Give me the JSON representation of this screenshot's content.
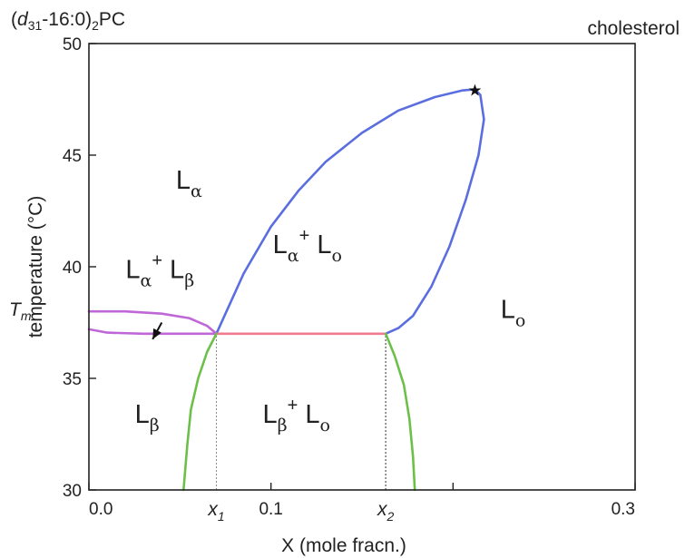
{
  "chart_data": {
    "type": "line",
    "title": "(d31-16:0)2PC",
    "title_parts": {
      "prefix": "(",
      "italic": "d",
      "sub": "31",
      "middle": "-16:0)",
      "sub2": "2",
      "suffix": "PC"
    },
    "right_label": "cholesterol",
    "xlabel": "X (mole fracn.)",
    "ylabel": "temperature (°C)",
    "xlim": [
      0.0,
      0.3
    ],
    "ylim": [
      30,
      50
    ],
    "xticks": [
      0.0,
      0.1,
      0.2,
      0.3
    ],
    "xtick_labels": [
      "0.0",
      "0.1",
      "",
      "0.3"
    ],
    "yticks": [
      30,
      35,
      40,
      45,
      50
    ],
    "ytick_labels": [
      "30",
      "35",
      "40",
      "45",
      "50"
    ],
    "tm_label": {
      "text": "T",
      "sub": "m",
      "y": 38.0
    },
    "x_markers": [
      {
        "text": "x",
        "sub": "1",
        "x": 0.07
      },
      {
        "text": "x",
        "sub": "2",
        "x": 0.163
      }
    ],
    "grid": false,
    "series": [
      {
        "color": "#5b6ee0",
        "points": [
          [
            0.07,
            37.0
          ],
          [
            0.075,
            37.9
          ],
          [
            0.085,
            39.7
          ],
          [
            0.1,
            41.8
          ],
          [
            0.115,
            43.4
          ],
          [
            0.13,
            44.7
          ],
          [
            0.15,
            46.0
          ],
          [
            0.17,
            47.0
          ],
          [
            0.19,
            47.6
          ],
          [
            0.205,
            47.9
          ],
          [
            0.212,
            47.95
          ],
          [
            0.215,
            47.7
          ],
          [
            0.217,
            46.6
          ],
          [
            0.214,
            45.0
          ],
          [
            0.207,
            43.0
          ],
          [
            0.198,
            40.9
          ],
          [
            0.188,
            39.1
          ],
          [
            0.178,
            37.8
          ],
          [
            0.17,
            37.25
          ],
          [
            0.163,
            37.0
          ]
        ]
      },
      {
        "color": "#c067d8",
        "points": [
          [
            0.0,
            38.0
          ],
          [
            0.02,
            38.0
          ],
          [
            0.04,
            37.9
          ],
          [
            0.055,
            37.7
          ],
          [
            0.065,
            37.35
          ],
          [
            0.07,
            37.0
          ],
          [
            0.05,
            37.0
          ],
          [
            0.03,
            37.0
          ],
          [
            0.01,
            37.05
          ],
          [
            0.0,
            37.2
          ]
        ]
      },
      {
        "color": "#f07a90",
        "points": [
          [
            0.07,
            37.0
          ],
          [
            0.163,
            37.0
          ]
        ]
      },
      {
        "color": "#6cc04a",
        "points": [
          [
            0.07,
            37.0
          ],
          [
            0.065,
            36.2
          ],
          [
            0.06,
            35.0
          ],
          [
            0.056,
            33.6
          ],
          [
            0.054,
            32.0
          ],
          [
            0.052,
            30.0
          ]
        ]
      },
      {
        "color": "#6cc04a",
        "points": [
          [
            0.163,
            37.0
          ],
          [
            0.168,
            36.0
          ],
          [
            0.173,
            34.7
          ],
          [
            0.176,
            33.2
          ],
          [
            0.178,
            31.5
          ],
          [
            0.179,
            30.0
          ]
        ]
      }
    ],
    "star_marker": {
      "x": 0.212,
      "y": 47.95,
      "symbol": "★"
    },
    "dashed_verticals": [
      {
        "x": 0.07,
        "from": 30,
        "to": 37.0,
        "color": "#888888"
      },
      {
        "x": 0.163,
        "from": 30,
        "to": 37.0,
        "color": "#333333"
      }
    ],
    "annotation_arrow": {
      "from": [
        0.04,
        37.5
      ],
      "to": [
        0.035,
        36.75
      ]
    },
    "region_labels": [
      {
        "main": "L",
        "sub": "α",
        "x": 0.055,
        "y": 43.5
      },
      {
        "main": "L",
        "sub": "α",
        "plus": "+",
        "main2": "L",
        "sub2": "o",
        "x": 0.12,
        "y": 40.6
      },
      {
        "main": "L",
        "sub": "α",
        "plus": "+",
        "main2": "L",
        "sub2": "β",
        "x": 0.039,
        "y": 39.5
      },
      {
        "main": "L",
        "sub": "o",
        "x": 0.233,
        "y": 37.7
      },
      {
        "main": "L",
        "sub": "β",
        "x": 0.032,
        "y": 33.0
      },
      {
        "main": "L",
        "sub": "β",
        "plus": "+",
        "main2": "L",
        "sub2": "o",
        "x": 0.114,
        "y": 33.0
      }
    ]
  }
}
